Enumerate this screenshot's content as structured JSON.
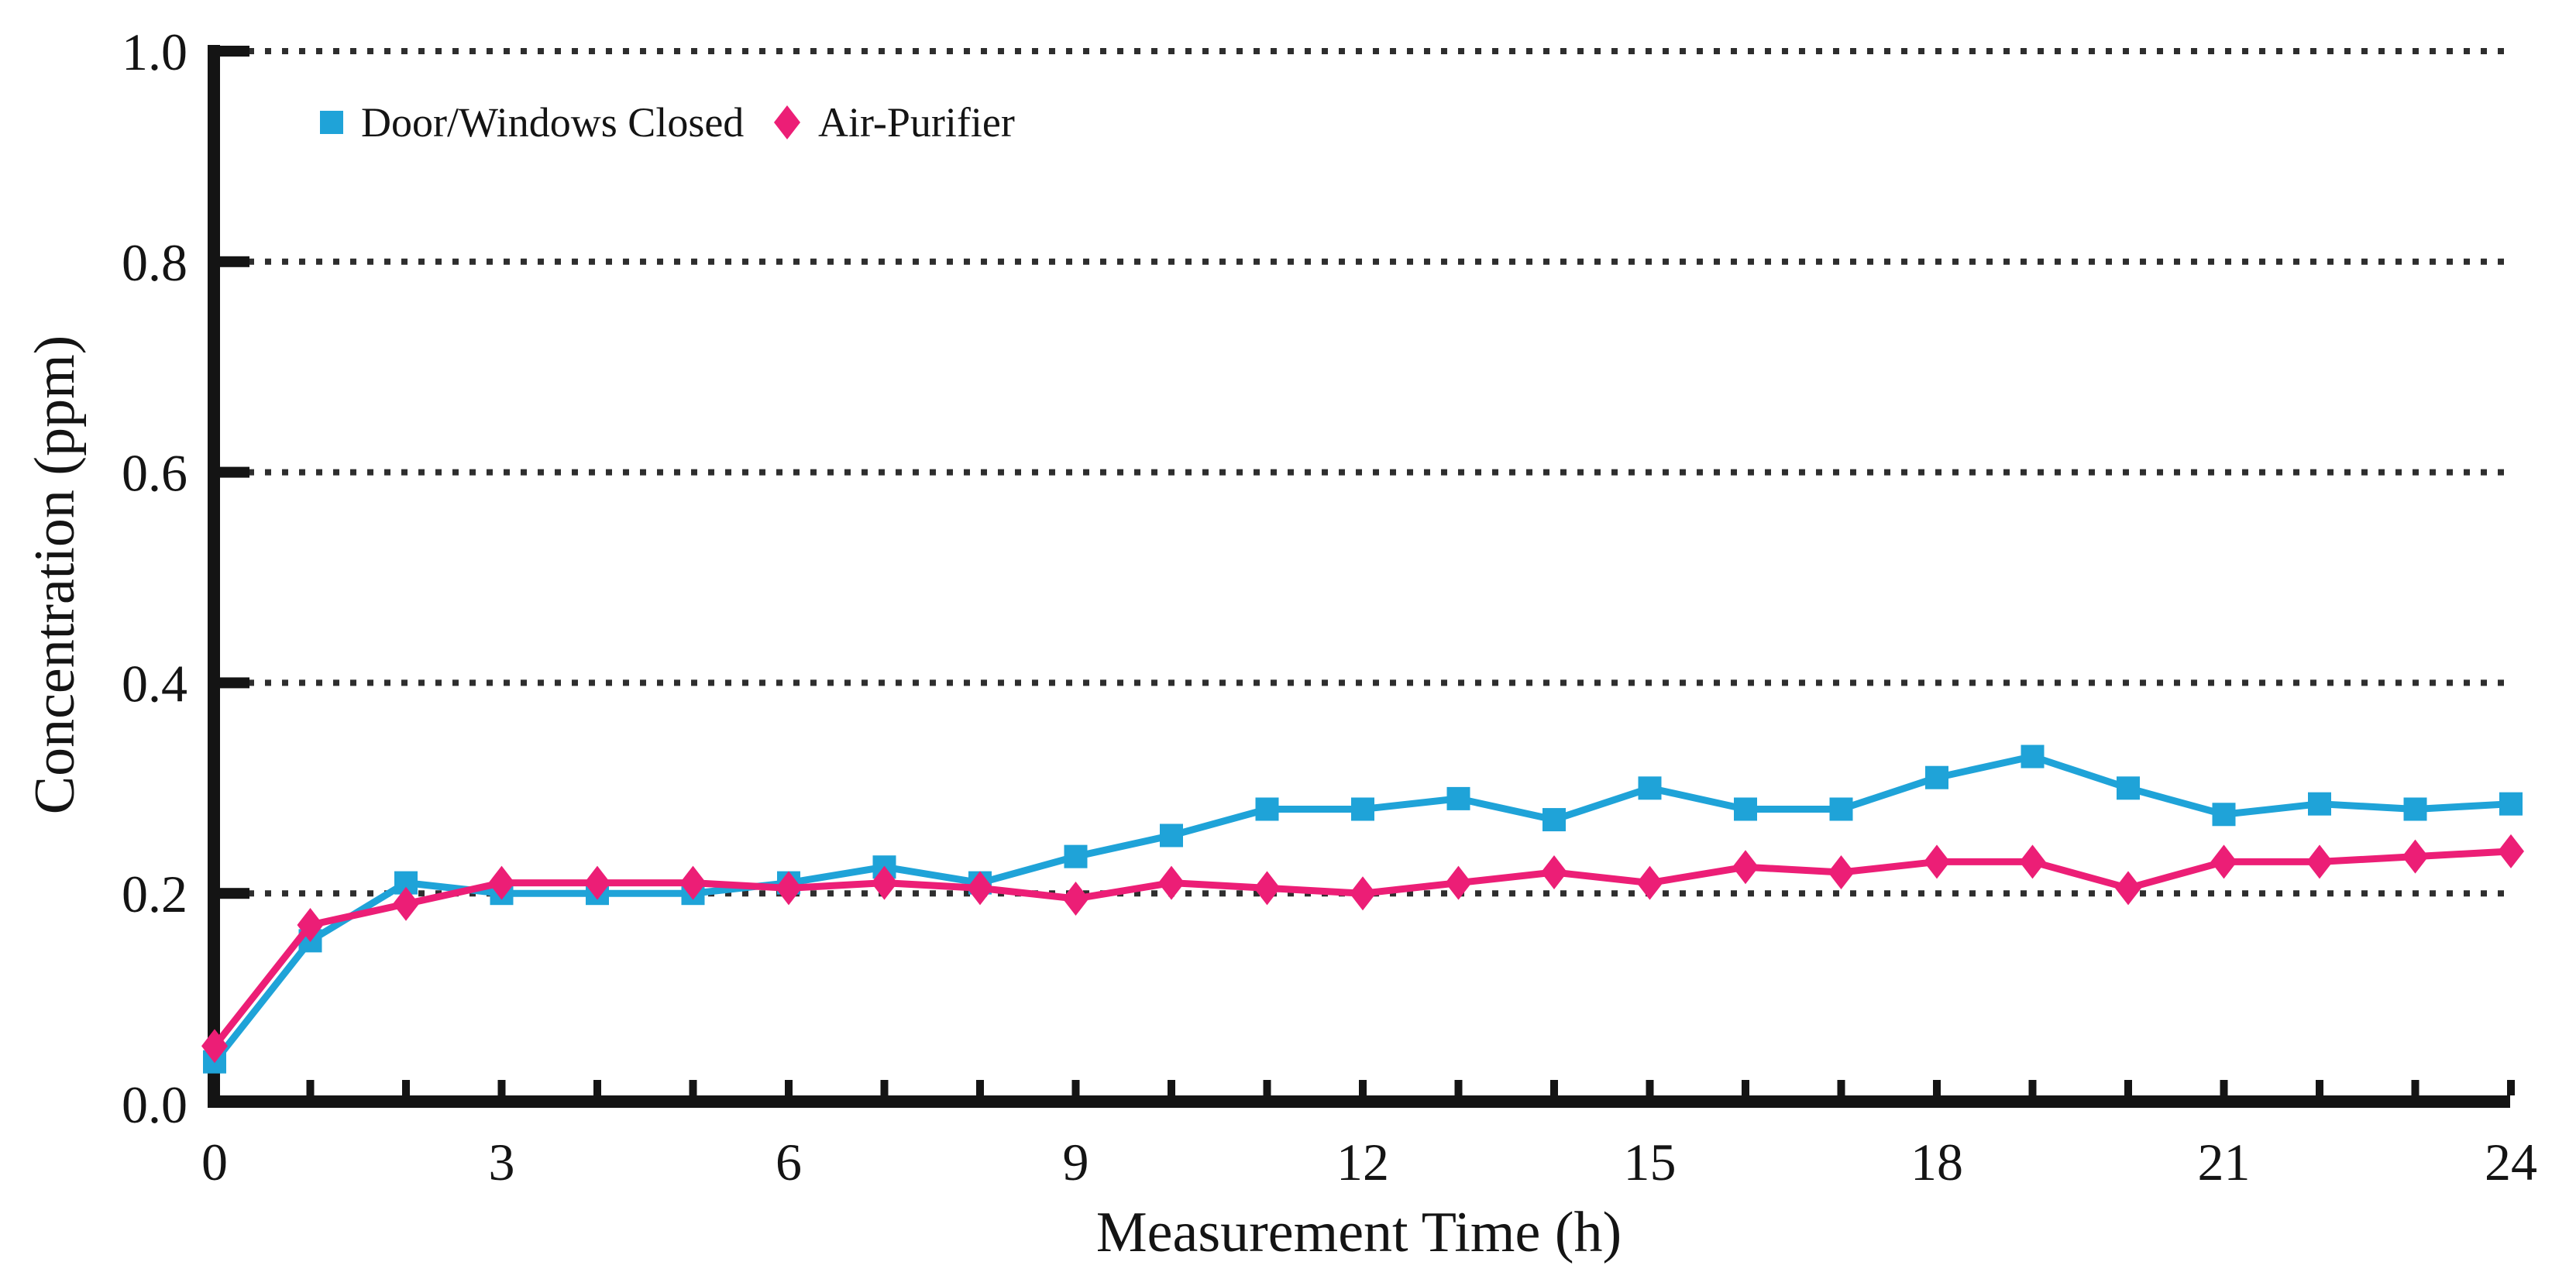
{
  "style": {
    "background": "#ffffff",
    "axis_color": "#141414",
    "text_color": "#141414",
    "gridline_color": "#2e2e2e"
  },
  "chart_data": {
    "type": "line",
    "title": "",
    "xlabel": "Measurement Time (h)",
    "ylabel": "Concentration (ppm)",
    "xlim": [
      0,
      24
    ],
    "ylim": [
      0.0,
      1.0
    ],
    "x_major_ticks": [
      0,
      3,
      6,
      9,
      12,
      15,
      18,
      21,
      24
    ],
    "x_tick_labels": [
      "0",
      "3",
      "6",
      "9",
      "12",
      "15",
      "18",
      "21",
      "24"
    ],
    "x_minor_tick_step": 1,
    "y_ticks": [
      0.0,
      0.2,
      0.4,
      0.6,
      0.8,
      1.0
    ],
    "y_tick_labels": [
      "0.0",
      "0.2",
      "0.4",
      "0.6",
      "0.8",
      "1.0"
    ],
    "grid": {
      "horizontal": true,
      "style": "dotted"
    },
    "legend_position": "top-left-inside",
    "x": [
      0,
      1,
      2,
      3,
      4,
      5,
      6,
      7,
      8,
      9,
      10,
      11,
      12,
      13,
      14,
      15,
      16,
      17,
      18,
      19,
      20,
      21,
      22,
      23,
      24
    ],
    "series": [
      {
        "name": "Door/Windows Closed",
        "marker": "square",
        "color": "#1FA3D8",
        "values": [
          0.04,
          0.155,
          0.21,
          0.2,
          0.2,
          0.2,
          0.21,
          0.225,
          0.21,
          0.235,
          0.255,
          0.28,
          0.28,
          0.29,
          0.27,
          0.3,
          0.28,
          0.28,
          0.31,
          0.33,
          0.3,
          0.275,
          0.285,
          0.28,
          0.285
        ]
      },
      {
        "name": "Air-Purifier",
        "marker": "diamond",
        "color": "#EC1E76",
        "values": [
          0.055,
          0.17,
          0.19,
          0.21,
          0.21,
          0.21,
          0.205,
          0.21,
          0.205,
          0.195,
          0.21,
          0.205,
          0.2,
          0.21,
          0.22,
          0.21,
          0.225,
          0.22,
          0.23,
          0.23,
          0.205,
          0.23,
          0.23,
          0.235,
          0.24
        ]
      }
    ]
  }
}
